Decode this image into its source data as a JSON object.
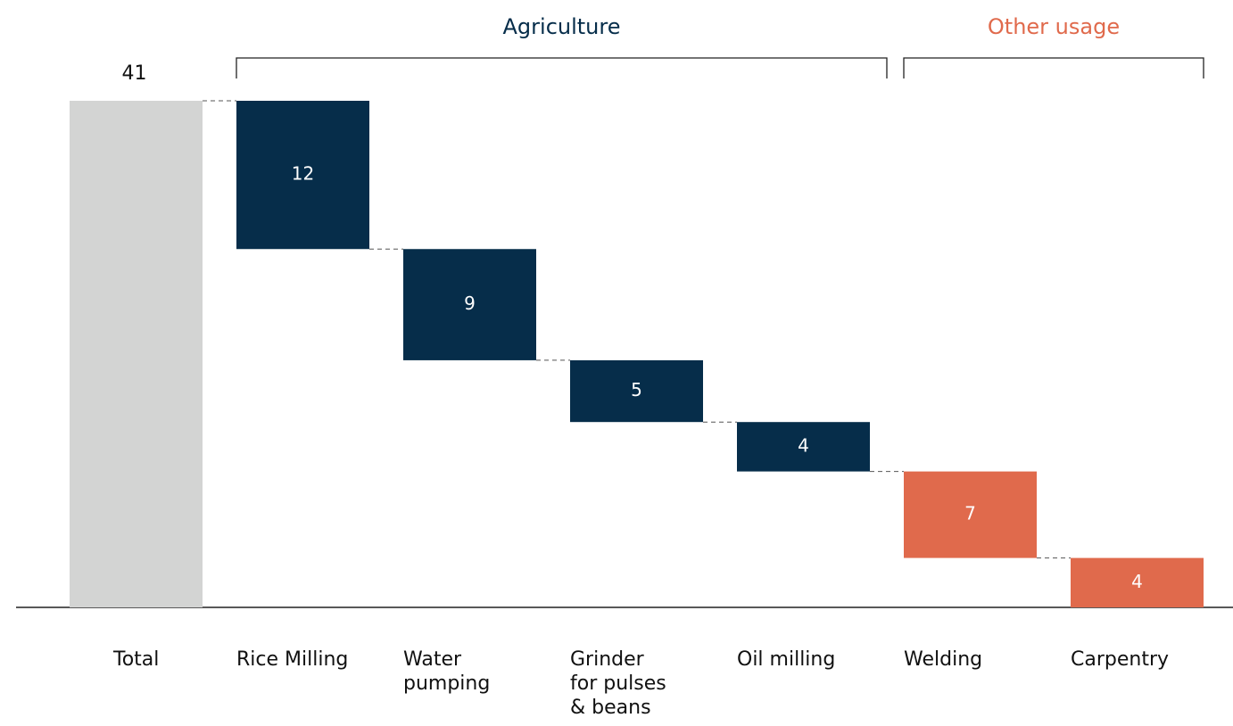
{
  "chart_data": {
    "type": "waterfall",
    "total": {
      "category": "Total",
      "value": 41,
      "color": "#d3d4d3"
    },
    "series": [
      {
        "name": "Agriculture",
        "color": "#062d4a",
        "categories": [
          "Rice Milling",
          "Water\npumping",
          "Grinder\nfor pulses\n& beans",
          "Oil milling"
        ],
        "values": [
          12,
          9,
          5,
          4
        ]
      },
      {
        "name": "Other usage",
        "color": "#e06a4c",
        "categories": [
          "Welding",
          "Carpentry"
        ],
        "values": [
          7,
          4
        ]
      }
    ]
  }
}
